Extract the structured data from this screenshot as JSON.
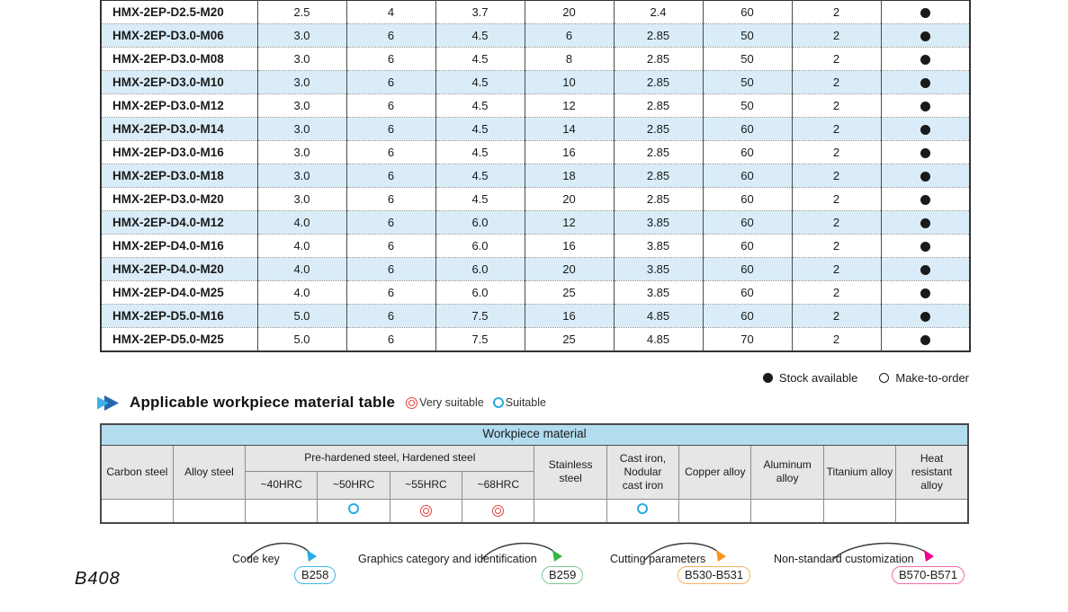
{
  "page": {
    "number": "B408"
  },
  "main_table": {
    "rows": [
      {
        "model": "HMX-2EP-D2.5-M20",
        "values": [
          "2.5",
          "4",
          "3.7",
          "20",
          "2.4",
          "60",
          "2"
        ],
        "stock": "stock-available"
      },
      {
        "model": "HMX-2EP-D3.0-M06",
        "values": [
          "3.0",
          "6",
          "4.5",
          "6",
          "2.85",
          "50",
          "2"
        ],
        "stock": "stock-available"
      },
      {
        "model": "HMX-2EP-D3.0-M08",
        "values": [
          "3.0",
          "6",
          "4.5",
          "8",
          "2.85",
          "50",
          "2"
        ],
        "stock": "stock-available"
      },
      {
        "model": "HMX-2EP-D3.0-M10",
        "values": [
          "3.0",
          "6",
          "4.5",
          "10",
          "2.85",
          "50",
          "2"
        ],
        "stock": "stock-available"
      },
      {
        "model": "HMX-2EP-D3.0-M12",
        "values": [
          "3.0",
          "6",
          "4.5",
          "12",
          "2.85",
          "50",
          "2"
        ],
        "stock": "stock-available"
      },
      {
        "model": "HMX-2EP-D3.0-M14",
        "values": [
          "3.0",
          "6",
          "4.5",
          "14",
          "2.85",
          "60",
          "2"
        ],
        "stock": "stock-available"
      },
      {
        "model": "HMX-2EP-D3.0-M16",
        "values": [
          "3.0",
          "6",
          "4.5",
          "16",
          "2.85",
          "60",
          "2"
        ],
        "stock": "stock-available"
      },
      {
        "model": "HMX-2EP-D3.0-M18",
        "values": [
          "3.0",
          "6",
          "4.5",
          "18",
          "2.85",
          "60",
          "2"
        ],
        "stock": "stock-available"
      },
      {
        "model": "HMX-2EP-D3.0-M20",
        "values": [
          "3.0",
          "6",
          "4.5",
          "20",
          "2.85",
          "60",
          "2"
        ],
        "stock": "stock-available"
      },
      {
        "model": "HMX-2EP-D4.0-M12",
        "values": [
          "4.0",
          "6",
          "6.0",
          "12",
          "3.85",
          "60",
          "2"
        ],
        "stock": "stock-available"
      },
      {
        "model": "HMX-2EP-D4.0-M16",
        "values": [
          "4.0",
          "6",
          "6.0",
          "16",
          "3.85",
          "60",
          "2"
        ],
        "stock": "stock-available"
      },
      {
        "model": "HMX-2EP-D4.0-M20",
        "values": [
          "4.0",
          "6",
          "6.0",
          "20",
          "3.85",
          "60",
          "2"
        ],
        "stock": "stock-available"
      },
      {
        "model": "HMX-2EP-D4.0-M25",
        "values": [
          "4.0",
          "6",
          "6.0",
          "25",
          "3.85",
          "60",
          "2"
        ],
        "stock": "stock-available"
      },
      {
        "model": "HMX-2EP-D5.0-M16",
        "values": [
          "5.0",
          "6",
          "7.5",
          "16",
          "4.85",
          "60",
          "2"
        ],
        "stock": "stock-available"
      },
      {
        "model": "HMX-2EP-D5.0-M25",
        "values": [
          "5.0",
          "6",
          "7.5",
          "25",
          "4.85",
          "70",
          "2"
        ],
        "stock": "stock-available"
      }
    ],
    "legend": {
      "stock_available": "Stock available",
      "make_to_order": "Make-to-order"
    }
  },
  "workpiece_section": {
    "title": "Applicable workpiece material table",
    "legend": {
      "very_suitable": "Very suitable",
      "suitable": "Suitable"
    },
    "table": {
      "title": "Workpiece material",
      "columns": {
        "carbon_steel": "Carbon steel",
        "alloy_steel": "Alloy steel",
        "hardness_group": "Pre-hardened steel, Hardened steel",
        "hardness_sub": [
          "~40HRC",
          "~50HRC",
          "~55HRC",
          "~68HRC"
        ],
        "stainless_steel": "Stainless steel",
        "cast_iron": "Cast iron,\nNodular\ncast iron",
        "copper_alloy": "Copper alloy",
        "aluminum_alloy": "Aluminum alloy",
        "titanium_alloy": "Titanium alloy",
        "heat_resistant_alloy": "Heat\nresistant\nalloy"
      },
      "ratings": [
        "",
        "",
        "",
        "suitable",
        "very-suitable",
        "very-suitable",
        "",
        "suitable",
        "",
        "",
        "",
        ""
      ]
    }
  },
  "references": [
    {
      "label": "Code key",
      "code": "B258",
      "arrow_color": "#29abe2",
      "box_color": "#3fb9e6"
    },
    {
      "label": "Graphics category and identification",
      "code": "B259",
      "arrow_color": "#39b54a",
      "box_color": "#7cc990"
    },
    {
      "label": "Cutting parameters",
      "code": "B530-B531",
      "arrow_color": "#f7941d",
      "box_color": "#f9b25c"
    },
    {
      "label": "Non-standard customization",
      "code": "B570-B571",
      "arrow_color": "#ec008c",
      "box_color": "#f06eaa"
    }
  ],
  "colors": {
    "row_alt": "#d9ecf8",
    "wp_title_bg": "#b3dcee",
    "wp_header_bg": "#e6e6e6",
    "very_suitable": "#e8413d",
    "suitable": "#29abe2",
    "stock_dot": "#1a1a1a"
  }
}
